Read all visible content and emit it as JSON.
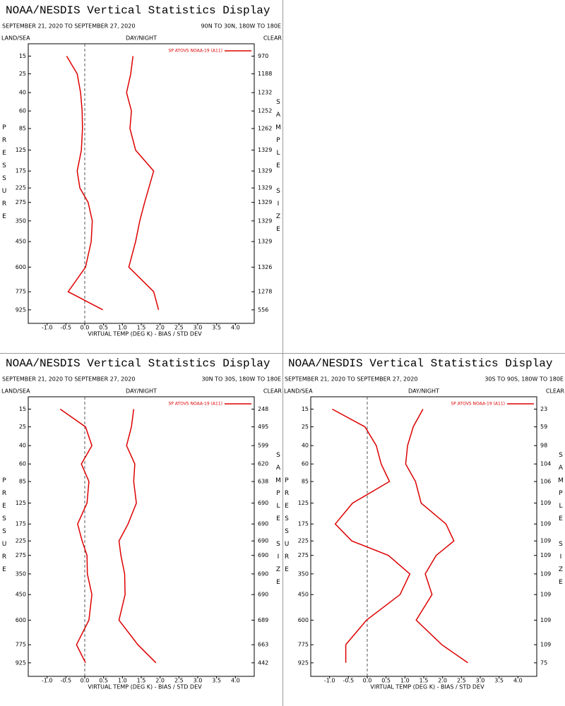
{
  "chart_data": [
    {
      "type": "line",
      "orientation": "horizontal",
      "title": "NOAA/NESDIS Vertical Statistics Display",
      "subtitle": "SEPTEMBER 21, 2020 TO SEPTEMBER 27, 2020",
      "region": "90N TO 30N, 180W TO 180E",
      "header": {
        "left": "LAND/SEA",
        "center": "DAY/NIGHT",
        "right": "CLEAR"
      },
      "ylabel": "PRESSURE",
      "y2label": "SAMPLE SIZE",
      "xlabel": "VIRTUAL TEMP (DEG K) - BIAS / STD DEV",
      "y": [
        15,
        25,
        40,
        60,
        85,
        125,
        175,
        225,
        275,
        350,
        450,
        600,
        775,
        925
      ],
      "sample_size": [
        970,
        1188,
        1232,
        1252,
        1262,
        1329,
        1329,
        1329,
        1329,
        1329,
        1329,
        1326,
        1278,
        556
      ],
      "series": [
        {
          "name": "SP ATOVS NOAA-19 (A11)",
          "color": "#dd0000",
          "bias": [
            -0.48,
            -0.2,
            -0.11,
            -0.07,
            -0.06,
            -0.09,
            -0.2,
            -0.13,
            0.09,
            0.2,
            0.17,
            0.02,
            -0.44,
            0.48
          ],
          "std_dev": [
            1.28,
            1.22,
            1.11,
            1.24,
            1.2,
            1.35,
            1.83,
            1.7,
            1.59,
            1.46,
            1.35,
            1.17,
            1.83,
            1.96
          ]
        }
      ],
      "xlim": [
        -1.5,
        4.5
      ],
      "xticks": [
        {
          "value": -1,
          "label": "-1.0"
        },
        -0.5,
        {
          "value": 0,
          "label": "0.0"
        },
        0.5,
        {
          "value": 1,
          "label": "1.0"
        },
        1.5,
        {
          "value": 2,
          "label": "2.0"
        },
        2.5,
        {
          "value": 3,
          "label": "3.0"
        },
        3.5,
        {
          "value": 4,
          "label": "4.0"
        }
      ],
      "ylim": [
        10,
        1050
      ],
      "yscale_exponent": 0.286,
      "legend": "upper right",
      "zero_line": true
    },
    {
      "type": "line",
      "orientation": "horizontal",
      "title": "NOAA/NESDIS Vertical Statistics Display",
      "subtitle": "SEPTEMBER 21, 2020 TO SEPTEMBER 27, 2020",
      "region": "30N TO 30S, 180W TO 180E",
      "header": {
        "left": "LAND/SEA",
        "center": "DAY/NIGHT",
        "right": "CLEAR"
      },
      "ylabel": "PRESSURE",
      "y2label": "SAMPLE SIZE",
      "xlabel": "VIRTUAL TEMP (DEG K) - BIAS / STD DEV",
      "y": [
        15,
        25,
        40,
        60,
        85,
        125,
        175,
        225,
        275,
        350,
        450,
        600,
        775,
        925
      ],
      "sample_size": [
        248,
        495,
        599,
        620,
        638,
        690,
        690,
        690,
        690,
        690,
        690,
        689,
        663,
        442
      ],
      "series": [
        {
          "name": "SP ATOVS NOAA-19 (A11)",
          "color": "#dd0000",
          "bias": [
            -0.65,
            0.02,
            0.19,
            -0.09,
            0.11,
            0.06,
            -0.19,
            -0.07,
            0.06,
            0.07,
            0.19,
            0.11,
            -0.22,
            0.02
          ],
          "std_dev": [
            1.3,
            1.24,
            1.11,
            1.33,
            1.3,
            1.37,
            1.15,
            0.91,
            0.96,
            1.06,
            1.07,
            0.91,
            1.41,
            1.89
          ]
        }
      ],
      "xlim": [
        -1.5,
        4.5
      ],
      "xticks": [
        {
          "value": -1,
          "label": "-1.0"
        },
        -0.5,
        {
          "value": 0,
          "label": "0.0"
        },
        0.5,
        {
          "value": 1,
          "label": "1.0"
        },
        1.5,
        {
          "value": 2,
          "label": "2.0"
        },
        2.5,
        {
          "value": 3,
          "label": "3.0"
        },
        3.5,
        {
          "value": 4,
          "label": "4.0"
        }
      ],
      "ylim": [
        10,
        1050
      ],
      "yscale_exponent": 0.286,
      "legend": "upper right",
      "zero_line": true
    },
    {
      "type": "line",
      "orientation": "horizontal",
      "title": "NOAA/NESDIS Vertical Statistics Display",
      "subtitle": "SEPTEMBER 21, 2020 TO SEPTEMBER 27, 2020",
      "region": "30S TO 90S, 180W TO 180E",
      "header": {
        "left": "LAND/SEA",
        "center": "DAY/NIGHT",
        "right": "CLEAR"
      },
      "ylabel": "PRESSURE",
      "y2label": "SAMPLE SIZE",
      "xlabel": "VIRTUAL TEMP (DEG K) - BIAS / STD DEV",
      "y": [
        15,
        25,
        40,
        60,
        85,
        125,
        175,
        225,
        275,
        350,
        450,
        600,
        775,
        925
      ],
      "sample_size": [
        23,
        59,
        98,
        104,
        106,
        109,
        109,
        109,
        109,
        109,
        109,
        109,
        109,
        75
      ],
      "series": [
        {
          "name": "SP ATOVS NOAA-19 (A11)",
          "color": "#dd0000",
          "bias": [
            -0.93,
            -0.06,
            0.24,
            0.37,
            0.59,
            -0.39,
            -0.85,
            -0.41,
            0.56,
            1.13,
            0.87,
            -0.02,
            -0.57,
            -0.57
          ],
          "std_dev": [
            1.48,
            1.22,
            1.07,
            1.02,
            1.28,
            1.43,
            2.09,
            2.3,
            1.83,
            1.54,
            1.72,
            1.3,
            1.98,
            2.67
          ]
        }
      ],
      "xlim": [
        -1.5,
        4.5
      ],
      "xticks": [
        {
          "value": -1,
          "label": "-1.0"
        },
        -0.5,
        {
          "value": 0,
          "label": "0.0"
        },
        0.5,
        {
          "value": 1,
          "label": "1.0"
        },
        1.5,
        {
          "value": 2,
          "label": "2.0"
        },
        2.5,
        {
          "value": 3,
          "label": "3.0"
        },
        3.5,
        {
          "value": 4,
          "label": "4.0"
        }
      ],
      "ylim": [
        10,
        1050
      ],
      "yscale_exponent": 0.286,
      "legend": "upper right",
      "zero_line": true
    }
  ]
}
